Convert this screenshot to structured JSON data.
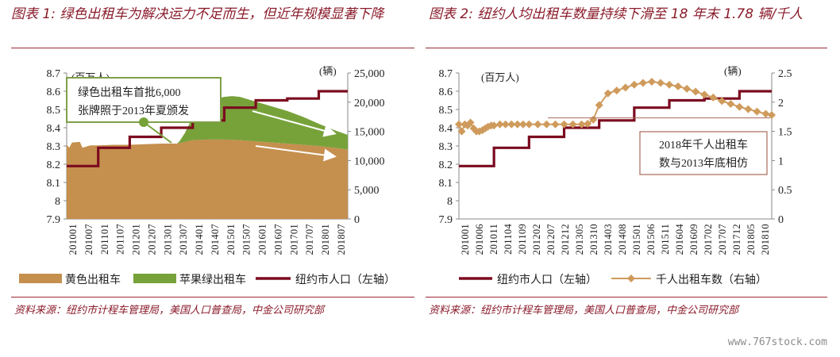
{
  "titles": {
    "chart1": "图表 1:  绿色出租车为解决运力不足而生，但近年规模显著下降",
    "chart2": "图表 2:  纽约人均出租车数量持续下滑至 18 年末 1.78 辆/千人"
  },
  "sources": {
    "chart1": "资料来源：纽约市计程车管理局，美国人口普查局，中金公司研究部",
    "chart2": "资料来源：纽约市计程车管理局，美国人口普查局，中金公司研究部"
  },
  "watermark": "www.767stock.com",
  "colors": {
    "yellow_taxi": "#c58f4e",
    "green_taxi": "#77a23a",
    "population": "#7b0a1f",
    "taxi_per_thousand": "#cf9b5c",
    "annotation_border": "#7fa048",
    "annotation2_border": "#a86a5a"
  },
  "chart_data": [
    {
      "type": "area",
      "x_ticks": [
        "201001",
        "201007",
        "201101",
        "201107",
        "201201",
        "201207",
        "201301",
        "201307",
        "201401",
        "201407",
        "201501",
        "201507",
        "201601",
        "201607",
        "201701",
        "201707",
        "201801",
        "201807"
      ],
      "left_axis": {
        "unit": "(百万人)",
        "ticks": [
          "8.7",
          "8.6",
          "8.5",
          "8.4",
          "8.3",
          "8.2",
          "8.1",
          "8",
          "7.9"
        ],
        "ylim": [
          7.9,
          8.7
        ]
      },
      "right_axis": {
        "unit": "(辆)",
        "ticks": [
          "25,000",
          "20,000",
          "15,000",
          "10,000",
          "5,000",
          "0"
        ],
        "ylim": [
          0,
          25000
        ]
      },
      "annotation": {
        "line1": "绿色出租车首批6,000",
        "line2": "张牌照于2013年夏颁发"
      },
      "legend": [
        "黄色出租车",
        "苹果绿出租车",
        "纽约市人口（左轴）"
      ],
      "series": [
        {
          "name": "黄色出租车",
          "axis": "right",
          "x": [
            2010.0,
            2010.08,
            2010.17,
            2010.42,
            2010.5,
            2010.75,
            2011.0,
            2011.5,
            2012.0,
            2012.5,
            2013.0,
            2013.5,
            2014.0,
            2014.5,
            2015.0,
            2015.5,
            2016.0,
            2016.5,
            2017.0,
            2017.5,
            2018.0,
            2018.5,
            2018.92
          ],
          "values": [
            12700,
            12200,
            13100,
            13200,
            12200,
            12600,
            12600,
            12700,
            12700,
            12800,
            12900,
            12900,
            13500,
            13600,
            13600,
            13500,
            13300,
            13100,
            12900,
            12700,
            12500,
            12200,
            11900
          ]
        },
        {
          "name": "苹果绿出租车",
          "axis": "right",
          "x": [
            2013.5,
            2013.58,
            2013.75,
            2014.0,
            2014.25,
            2014.5,
            2014.75,
            2015.0,
            2015.25,
            2015.5,
            2015.75,
            2016.0,
            2016.5,
            2017.0,
            2017.5,
            2018.0,
            2018.5,
            2018.92
          ],
          "values": [
            0,
            300,
            1500,
            4000,
            5200,
            6300,
            7000,
            7300,
            7500,
            7400,
            7100,
            6800,
            6200,
            5600,
            4800,
            3800,
            3000,
            2500
          ]
        },
        {
          "name": "纽约市人口（左轴）",
          "axis": "left",
          "x": [
            2010.0,
            2010.5,
            2011.0,
            2011.5,
            2012.0,
            2012.5,
            2013.0,
            2013.5,
            2014.0,
            2014.5,
            2015.0,
            2015.5,
            2016.0,
            2016.5,
            2017.0,
            2017.5,
            2018.0,
            2018.5,
            2018.92
          ],
          "values": [
            8.19,
            8.19,
            8.29,
            8.29,
            8.35,
            8.35,
            8.4,
            8.4,
            8.44,
            8.44,
            8.51,
            8.51,
            8.55,
            8.55,
            8.56,
            8.56,
            8.6,
            8.6,
            8.6
          ]
        }
      ]
    },
    {
      "type": "line",
      "x_ticks": [
        "201001",
        "201006",
        "201011",
        "201104",
        "201109",
        "201202",
        "201207",
        "201212",
        "201305",
        "201310",
        "201403",
        "201408",
        "201501",
        "201506",
        "201511",
        "201604",
        "201609",
        "201702",
        "201707",
        "201712",
        "201805",
        "201810"
      ],
      "left_axis": {
        "unit": "(百万人)",
        "ticks": [
          "8.7",
          "8.6",
          "8.5",
          "8.4",
          "8.3",
          "8.2",
          "8.1",
          "8",
          "7.9"
        ],
        "ylim": [
          7.9,
          8.7
        ]
      },
      "right_axis": {
        "unit": "(辆)",
        "ticks": [
          "2.5",
          "2",
          "1.5",
          "1",
          "0.5",
          "0"
        ],
        "ylim": [
          0,
          2.5
        ]
      },
      "annotation": {
        "line1": "2018年千人出租车",
        "line2": "数与2013年底相仿"
      },
      "reference_line": 1.73,
      "legend": [
        "纽约市人口（左轴）",
        "千人出租车数（右轴）"
      ],
      "series": [
        {
          "name": "纽约市人口（左轴）",
          "axis": "left",
          "x": [
            2010.0,
            2010.5,
            2011.0,
            2011.5,
            2012.0,
            2012.5,
            2013.0,
            2013.5,
            2014.0,
            2014.5,
            2015.0,
            2015.5,
            2016.0,
            2016.5,
            2017.0,
            2017.5,
            2018.0,
            2018.5,
            2018.92
          ],
          "values": [
            8.19,
            8.19,
            8.29,
            8.29,
            8.35,
            8.35,
            8.4,
            8.4,
            8.44,
            8.44,
            8.51,
            8.51,
            8.55,
            8.55,
            8.56,
            8.56,
            8.6,
            8.6,
            8.6
          ]
        },
        {
          "name": "千人出租车数（右轴）",
          "axis": "right",
          "x": [
            2010.0,
            2010.08,
            2010.17,
            2010.25,
            2010.33,
            2010.42,
            2010.5,
            2010.58,
            2010.67,
            2010.75,
            2010.83,
            2010.92,
            2011.0,
            2011.17,
            2011.33,
            2011.5,
            2011.67,
            2011.83,
            2012.0,
            2012.25,
            2012.5,
            2012.75,
            2013.0,
            2013.25,
            2013.5,
            2013.67,
            2013.83,
            2014.0,
            2014.25,
            2014.5,
            2014.75,
            2015.0,
            2015.25,
            2015.5,
            2015.75,
            2016.0,
            2016.25,
            2016.5,
            2016.75,
            2017.0,
            2017.25,
            2017.5,
            2017.75,
            2018.0,
            2018.25,
            2018.5,
            2018.75,
            2018.92
          ],
          "values": [
            1.62,
            1.5,
            1.62,
            1.6,
            1.65,
            1.55,
            1.5,
            1.5,
            1.52,
            1.55,
            1.58,
            1.6,
            1.6,
            1.62,
            1.62,
            1.62,
            1.62,
            1.62,
            1.62,
            1.62,
            1.62,
            1.62,
            1.62,
            1.62,
            1.62,
            1.63,
            1.7,
            1.95,
            2.15,
            2.2,
            2.25,
            2.3,
            2.33,
            2.35,
            2.33,
            2.3,
            2.27,
            2.23,
            2.18,
            2.13,
            2.08,
            2.02,
            1.97,
            1.92,
            1.88,
            1.84,
            1.8,
            1.78
          ]
        }
      ]
    }
  ]
}
